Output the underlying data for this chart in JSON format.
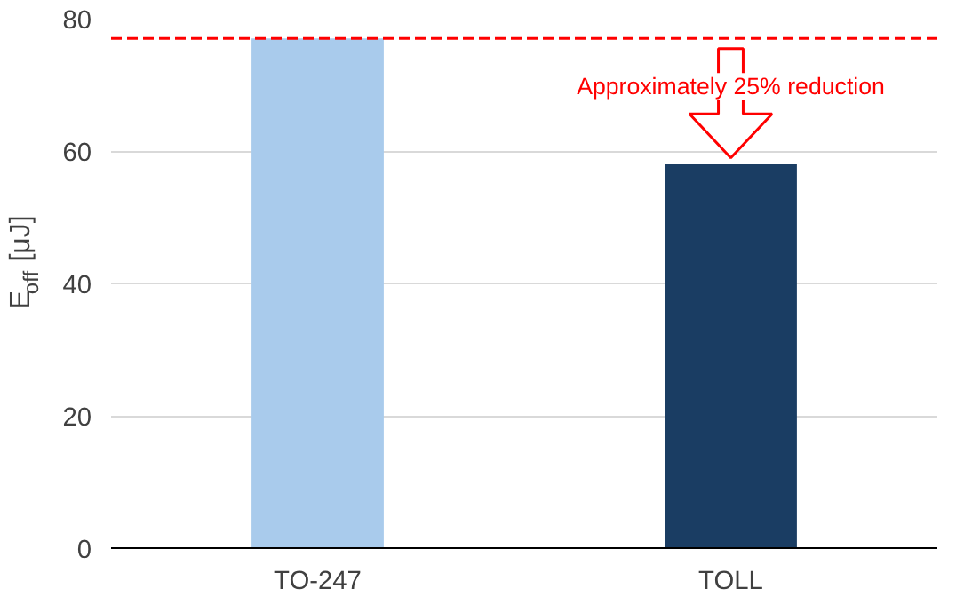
{
  "chart_data": {
    "type": "bar",
    "categories": [
      "TO-247",
      "TOLL"
    ],
    "colors": [
      "#a9cbec",
      "#1a3d63"
    ],
    "values": [
      77,
      58
    ],
    "ylabel": "E$_{off}$ [μJ]",
    "ylim": [
      0,
      80
    ],
    "yticks": [
      0,
      20,
      40,
      60,
      80
    ],
    "grid": "y",
    "ref_lines": [
      {
        "axis": "y",
        "value": 77,
        "color": "#ff0000",
        "line_style": "dashed"
      }
    ],
    "annotations": [
      {
        "text": "Approximately 25% reduction",
        "x": "TOLL",
        "y": 58
      }
    ]
  }
}
